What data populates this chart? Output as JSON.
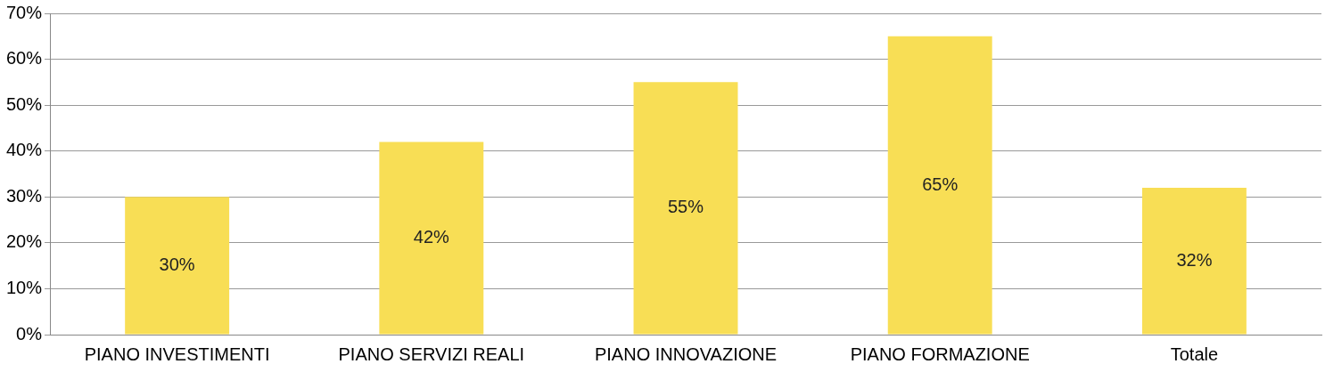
{
  "chart_data": {
    "type": "bar",
    "categories": [
      "PIANO INVESTIMENTI",
      "PIANO SERVIZI REALI",
      "PIANO INNOVAZIONE",
      "PIANO FORMAZIONE",
      "Totale"
    ],
    "values": [
      30,
      42,
      55,
      65,
      32
    ],
    "value_labels": [
      "30%",
      "42%",
      "55%",
      "65%",
      "32%"
    ],
    "color": "#f8de55",
    "ylim": [
      0,
      70
    ],
    "yticks": [
      {
        "value": 0,
        "label": "0%"
      },
      {
        "value": 10,
        "label": "10%"
      },
      {
        "value": 20,
        "label": "20%"
      },
      {
        "value": 30,
        "label": "30%"
      },
      {
        "value": 40,
        "label": "40%"
      },
      {
        "value": 50,
        "label": "50%"
      },
      {
        "value": 60,
        "label": "60%"
      },
      {
        "value": 70,
        "label": "70%"
      }
    ],
    "grid": "y"
  }
}
